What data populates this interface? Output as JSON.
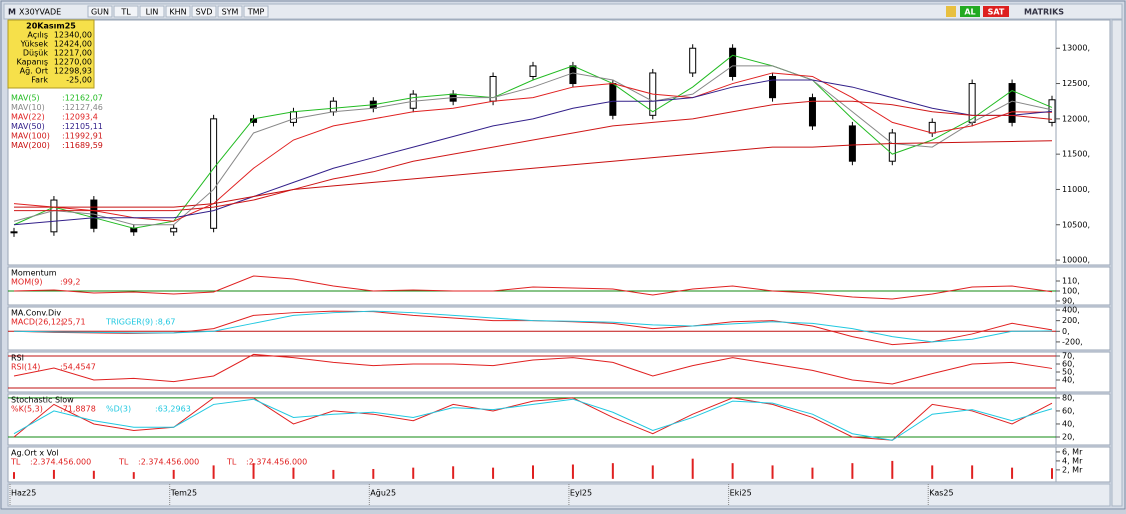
{
  "toolbar": {
    "logo": "M",
    "symbol": "X30YVADE",
    "buttons": [
      "GUN",
      "TL",
      "LIN",
      "KHN",
      "SVD",
      "SYM",
      "TMP"
    ],
    "buy": "AL",
    "sell": "SAT",
    "brand": "MATRIKS"
  },
  "info_box": {
    "title": "20Kasım25",
    "rows": [
      [
        "Açılış",
        "12340,00"
      ],
      [
        "Yüksek",
        "12424,00"
      ],
      [
        "Düşük",
        "12217,00"
      ],
      [
        "Kapanış",
        "12270,00"
      ],
      [
        "Ağ. Ort",
        "12298,93"
      ],
      [
        "Fark",
        "-25,00"
      ]
    ]
  },
  "x_axis": {
    "categories": [
      "Haz25",
      null,
      null,
      null,
      "Tem25",
      null,
      null,
      null,
      null,
      "Ağu25",
      null,
      null,
      null,
      null,
      "Eyl25",
      null,
      null,
      null,
      "Eki25",
      null,
      null,
      null,
      null,
      "Kas25",
      null,
      null,
      null
    ]
  },
  "chart_data": [
    {
      "type": "candlestick",
      "ylim": [
        9930,
        13400
      ],
      "yticks": [
        {
          "value": 13000,
          "label": "13000,"
        },
        {
          "value": 12500,
          "label": "12500,"
        },
        {
          "value": 12000,
          "label": "12000,"
        },
        {
          "value": 11500,
          "label": "11500,"
        },
        {
          "value": 11000,
          "label": "11000,"
        },
        {
          "value": 10500,
          "label": "10500,"
        },
        {
          "value": 10000,
          "label": "10000,"
        }
      ],
      "closes": [
        10400,
        10850,
        10450,
        10400,
        10450,
        12000,
        11950,
        12100,
        12250,
        12150,
        12350,
        12250,
        12600,
        12750,
        12500,
        12050,
        12650,
        13000,
        12600,
        12300,
        11900,
        11400,
        11800,
        11950,
        12500,
        11950,
        12270
      ],
      "series": [
        {
          "name": "MAV(5)",
          "value_label": ":12162,07",
          "color": "#22bb22",
          "values": [
            10500,
            10750,
            10600,
            10450,
            10550,
            11300,
            12000,
            12100,
            12150,
            12200,
            12300,
            12350,
            12300,
            12550,
            12750,
            12500,
            12100,
            12450,
            12900,
            12750,
            12550,
            12000,
            11500,
            11700,
            12000,
            12400,
            12162.07
          ]
        },
        {
          "name": "MAV(10)",
          "value_label": ":12127,46",
          "color": "#888888",
          "values": [
            10550,
            10700,
            10650,
            10500,
            10500,
            11000,
            11800,
            12000,
            12100,
            12150,
            12250,
            12300,
            12300,
            12450,
            12650,
            12550,
            12250,
            12350,
            12750,
            12750,
            12550,
            12100,
            11650,
            11600,
            11950,
            12250,
            12127.46
          ]
        },
        {
          "name": "MAV(22)",
          "value_label": ":12093,4",
          "color": "#e02020",
          "values": [
            10800,
            10750,
            10700,
            10600,
            10550,
            10800,
            11300,
            11700,
            11900,
            12000,
            12100,
            12150,
            12250,
            12300,
            12450,
            12500,
            12350,
            12300,
            12500,
            12650,
            12600,
            12300,
            11950,
            11800,
            11900,
            12100,
            12093.4
          ]
        },
        {
          "name": "MAV(50)",
          "value_label": ":12105,11",
          "color": "#33208a",
          "values": [
            10500,
            10550,
            10600,
            10600,
            10600,
            10700,
            10900,
            11100,
            11300,
            11450,
            11600,
            11750,
            11900,
            12000,
            12150,
            12250,
            12250,
            12300,
            12450,
            12550,
            12550,
            12450,
            12300,
            12150,
            12050,
            12050,
            12105.11
          ]
        },
        {
          "name": "MAV(100)",
          "value_label": ":11992,91",
          "color": "#d01818",
          "values": [
            10700,
            10700,
            10700,
            10700,
            10700,
            10750,
            10850,
            11000,
            11150,
            11250,
            11400,
            11500,
            11600,
            11700,
            11800,
            11900,
            11950,
            12000,
            12100,
            12200,
            12250,
            12250,
            12200,
            12100,
            12050,
            12050,
            11992.91
          ]
        },
        {
          "name": "MAV(200)",
          "value_label": ":11689,59",
          "color": "#c81010",
          "values": [
            10750,
            10750,
            10750,
            10750,
            10750,
            10800,
            10900,
            11000,
            11050,
            11100,
            11150,
            11200,
            11250,
            11300,
            11350,
            11400,
            11450,
            11500,
            11550,
            11600,
            11600,
            11630,
            11650,
            11660,
            11670,
            11680,
            11689.59
          ]
        }
      ]
    },
    {
      "type": "line",
      "title": "Momentum",
      "ylim": [
        86,
        124
      ],
      "yticks": [
        {
          "value": 110,
          "label": "110,"
        },
        {
          "value": 100,
          "label": "100,"
        },
        {
          "value": 90,
          "label": "90,"
        }
      ],
      "ref_lines": [
        100
      ],
      "ref_color": "#118811",
      "series": [
        {
          "name": "MOM(9)",
          "value_label": ":99,2",
          "color": "#e02020",
          "values": [
            100,
            101,
            98,
            99,
            97,
            99,
            115,
            112,
            105,
            100,
            101,
            100,
            100,
            104,
            103,
            102,
            96,
            102,
            105,
            100,
            98,
            94,
            92,
            97,
            104,
            105,
            99.2
          ]
        }
      ]
    },
    {
      "type": "line",
      "title": "MA.Conv.Div",
      "ylim": [
        -352,
        457
      ],
      "yticks": [
        {
          "value": 400,
          "label": "400,"
        },
        {
          "value": 200,
          "label": "200,"
        },
        {
          "value": 0,
          "label": "0,"
        },
        {
          "value": -200,
          "label": "-200,"
        }
      ],
      "ref_lines": [
        0
      ],
      "ref_color": "#c01010",
      "series": [
        {
          "name": "MACD(26,12)",
          "value_label": ":25,71",
          "color": "#e02020",
          "values": [
            0,
            -20,
            -30,
            -40,
            -30,
            50,
            300,
            350,
            380,
            370,
            300,
            250,
            200,
            200,
            180,
            150,
            50,
            100,
            180,
            200,
            100,
            -100,
            -250,
            -200,
            -50,
            150,
            25.71
          ]
        },
        {
          "name": "TRIGGER(9)",
          "value_label": ":8,67",
          "color": "#20c8e0",
          "values": [
            0,
            -10,
            -20,
            -30,
            -30,
            0,
            150,
            300,
            350,
            380,
            350,
            300,
            250,
            200,
            190,
            170,
            120,
            100,
            140,
            180,
            150,
            50,
            -100,
            -200,
            -150,
            0,
            8.67
          ]
        }
      ]
    },
    {
      "type": "line",
      "title": "RSI",
      "ylim": [
        25,
        75
      ],
      "yticks": [
        {
          "value": 70,
          "label": "70,"
        },
        {
          "value": 60,
          "label": "60,"
        },
        {
          "value": 50,
          "label": "50,"
        },
        {
          "value": 40,
          "label": "40,"
        }
      ],
      "ref_lines": [
        70,
        30
      ],
      "ref_color": "#c01010",
      "series": [
        {
          "name": "RSI(14)",
          "value_label": ":54,4547",
          "color": "#e02020",
          "values": [
            45,
            55,
            40,
            42,
            38,
            45,
            72,
            68,
            62,
            58,
            60,
            60,
            58,
            65,
            68,
            62,
            45,
            58,
            68,
            60,
            52,
            40,
            35,
            48,
            60,
            62,
            54.4547
          ]
        }
      ]
    },
    {
      "type": "line",
      "title": "Stochastic Slow",
      "ylim": [
        7.7,
        86
      ],
      "yticks": [
        {
          "value": 80,
          "label": "80,"
        },
        {
          "value": 60,
          "label": "60,"
        },
        {
          "value": 40,
          "label": "40,"
        },
        {
          "value": 20,
          "label": "20,"
        }
      ],
      "ref_lines": [
        80,
        20
      ],
      "ref_color": "#118811",
      "series": [
        {
          "name": "%K(5,3)",
          "value_label": ":71,8878",
          "color": "#e02020",
          "values": [
            20,
            70,
            40,
            30,
            35,
            80,
            80,
            40,
            60,
            55,
            45,
            70,
            60,
            75,
            80,
            50,
            25,
            55,
            80,
            70,
            50,
            20,
            15,
            70,
            60,
            40,
            71.8878
          ]
        },
        {
          "name": "%D(3)",
          "value_label": ":63,2963",
          "color": "#20c8e0",
          "values": [
            25,
            60,
            45,
            35,
            35,
            70,
            78,
            50,
            55,
            58,
            50,
            65,
            62,
            70,
            78,
            58,
            30,
            50,
            75,
            72,
            55,
            25,
            15,
            55,
            62,
            45,
            63.2963
          ]
        }
      ]
    },
    {
      "type": "bar",
      "title": "Ag.Ort x Vol",
      "ylim": [
        -0.7,
        7.1
      ],
      "yticks": [
        {
          "value": 6,
          "label": "6, Mr"
        },
        {
          "value": 4,
          "label": "4, Mr"
        },
        {
          "value": 2,
          "label": "2, Mr"
        }
      ],
      "legend": [
        [
          "TL",
          ":2.374.456.000"
        ],
        [
          "TL",
          ":2.374.456.000"
        ],
        [
          "TL",
          ":2.374.456.000"
        ]
      ],
      "series": [
        {
          "color": "#e02020",
          "values": [
            1.5,
            2,
            1.8,
            1.5,
            2,
            3,
            3.5,
            2.5,
            2,
            2.2,
            2.5,
            2.8,
            2.5,
            3,
            3.2,
            3.5,
            3,
            4.5,
            3.5,
            3,
            2.5,
            3.5,
            4,
            3,
            3,
            2.5,
            2.374456
          ]
        }
      ]
    }
  ]
}
